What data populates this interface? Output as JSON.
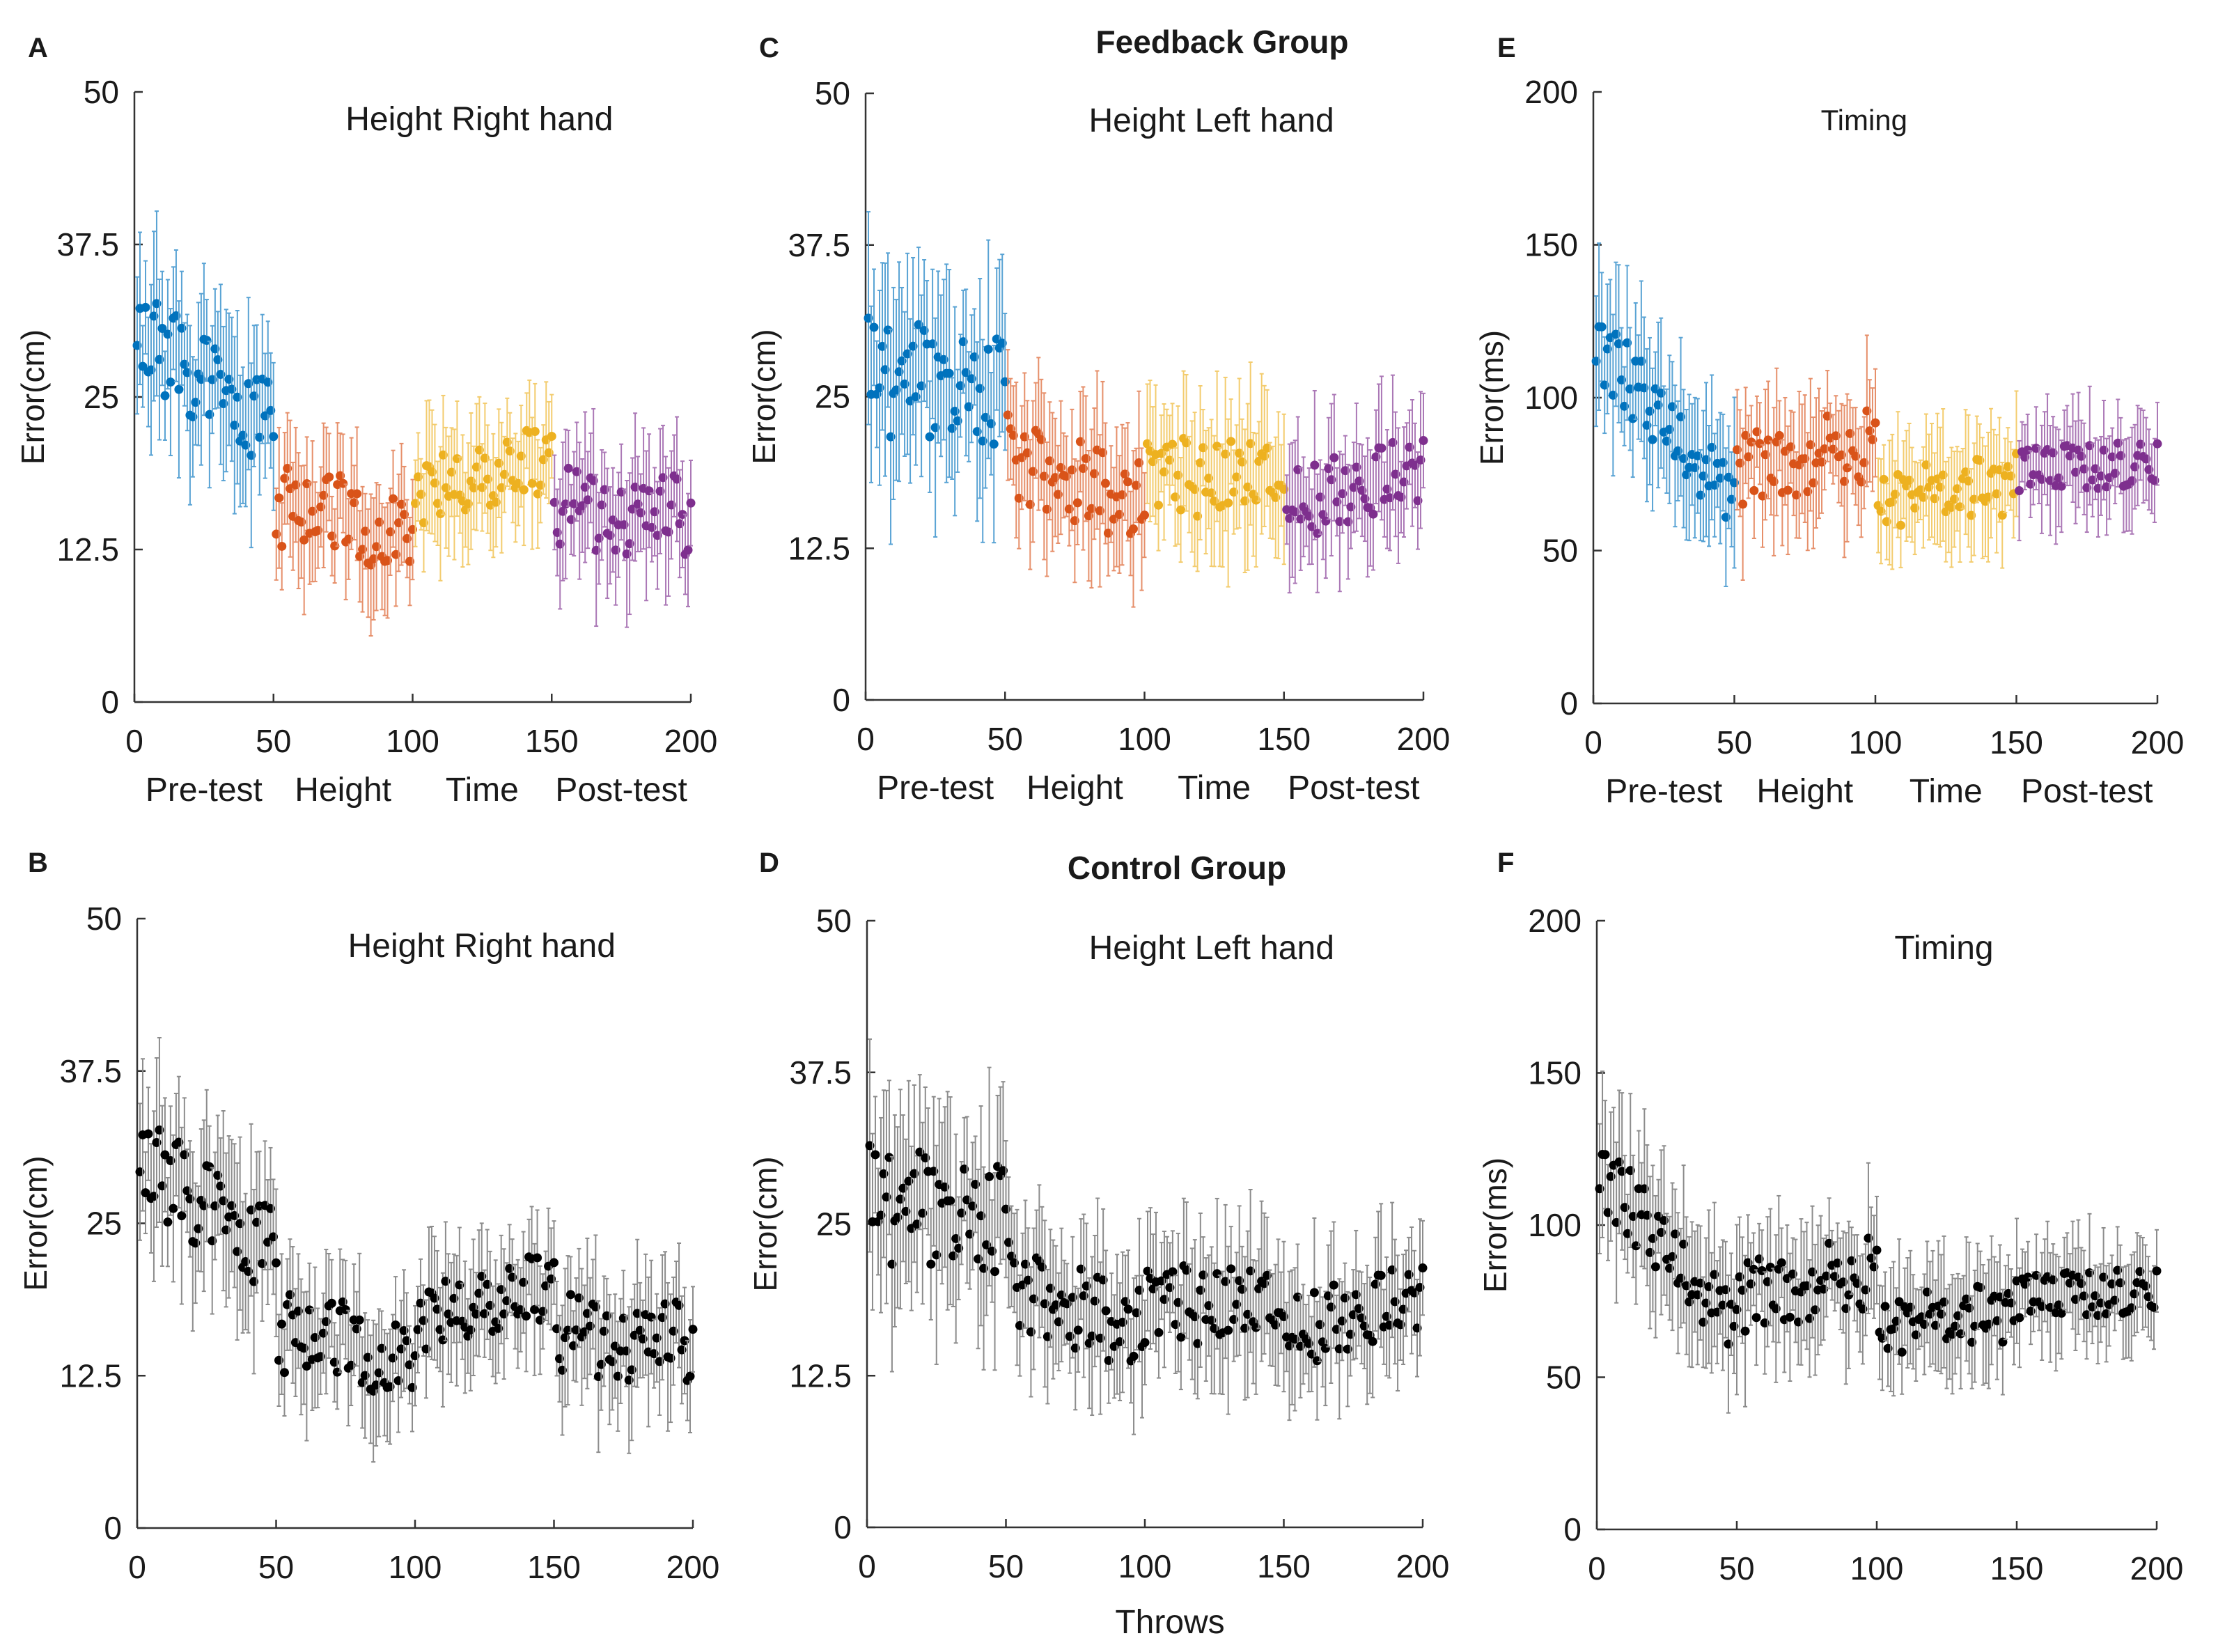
{
  "figure": {
    "group_titles": [
      "Feedback Group",
      "Control Group"
    ],
    "x_axis_label": "Throws",
    "phase_labels": [
      "Pre-test",
      "Height",
      "Time",
      "Post-test"
    ],
    "phase_colors": [
      "#0072BD",
      "#D95319",
      "#EDB120",
      "#7E2F8E"
    ],
    "control_color": "#000000"
  },
  "chart_data": [
    {
      "panel": "A",
      "type": "scatter",
      "title": "Height Right hand",
      "ylabel": "Error(cm)",
      "xlim": [
        0,
        200
      ],
      "ylim": [
        0,
        50
      ],
      "xticks": [
        0,
        50,
        100,
        150,
        200
      ],
      "yticks": [
        0,
        12.5,
        25,
        37.5,
        50
      ],
      "ytick_labels": [
        "0",
        "12.5",
        "25",
        "37.5",
        "50"
      ],
      "colored": true,
      "show_phase_labels": true,
      "show_xlabel": false,
      "series": [
        {
          "name": "Pre-test",
          "x_range": [
            1,
            50
          ],
          "mean_start": 30,
          "mean_end": 22,
          "noise": 4.0,
          "err": 5.5
        },
        {
          "name": "Height",
          "x_range": [
            51,
            100
          ],
          "mean_start": 16,
          "mean_end": 14,
          "noise": 3.5,
          "err": 4.5
        },
        {
          "name": "Time",
          "x_range": [
            101,
            150
          ],
          "mean_start": 17,
          "mean_end": 20,
          "noise": 3.0,
          "err": 4.0
        },
        {
          "name": "Post-test",
          "x_range": [
            151,
            200
          ],
          "mean_start": 16,
          "mean_end": 15,
          "noise": 3.5,
          "err": 4.5
        }
      ]
    },
    {
      "panel": "B",
      "type": "scatter",
      "title": "Height Right hand",
      "ylabel": "Error(cm)",
      "xlim": [
        0,
        200
      ],
      "ylim": [
        0,
        50
      ],
      "xticks": [
        0,
        50,
        100,
        150,
        200
      ],
      "yticks": [
        0,
        12.5,
        25,
        37.5,
        50
      ],
      "ytick_labels": [
        "0",
        "12.5",
        "25",
        "37.5",
        "50"
      ],
      "colored": false,
      "show_phase_labels": false,
      "show_xlabel": false,
      "series": [
        {
          "name": "Pre-test",
          "x_range": [
            1,
            50
          ],
          "mean_start": 30,
          "mean_end": 22,
          "noise": 4.0,
          "err": 5.5
        },
        {
          "name": "Height",
          "x_range": [
            51,
            100
          ],
          "mean_start": 16,
          "mean_end": 14,
          "noise": 3.5,
          "err": 4.5
        },
        {
          "name": "Time",
          "x_range": [
            101,
            150
          ],
          "mean_start": 17,
          "mean_end": 20,
          "noise": 3.0,
          "err": 4.0
        },
        {
          "name": "Post-test",
          "x_range": [
            151,
            200
          ],
          "mean_start": 16,
          "mean_end": 15,
          "noise": 3.5,
          "err": 4.5
        }
      ]
    },
    {
      "panel": "C",
      "type": "scatter",
      "title": "Height Left hand",
      "ylabel": "Error(cm)",
      "xlim": [
        0,
        200
      ],
      "ylim": [
        0,
        50
      ],
      "xticks": [
        0,
        50,
        100,
        150,
        200
      ],
      "yticks": [
        0,
        12.5,
        25,
        37.5,
        50
      ],
      "ytick_labels": [
        "0",
        "12.5",
        "25",
        "37.5",
        "50"
      ],
      "colored": true,
      "show_phase_labels": true,
      "show_xlabel": false,
      "series": [
        {
          "name": "Pre-test",
          "x_range": [
            1,
            50
          ],
          "mean_start": 27,
          "mean_end": 25,
          "noise": 5.0,
          "err": 6.5
        },
        {
          "name": "Height",
          "x_range": [
            51,
            100
          ],
          "mean_start": 20,
          "mean_end": 16,
          "noise": 3.5,
          "err": 5.0
        },
        {
          "name": "Time",
          "x_range": [
            101,
            150
          ],
          "mean_start": 18,
          "mean_end": 19,
          "noise": 3.5,
          "err": 5.0
        },
        {
          "name": "Post-test",
          "x_range": [
            151,
            200
          ],
          "mean_start": 16,
          "mean_end": 19,
          "noise": 3.0,
          "err": 4.5
        }
      ]
    },
    {
      "panel": "D",
      "type": "scatter",
      "title": "Height Left hand",
      "ylabel": "Error(cm)",
      "xlim": [
        0,
        200
      ],
      "ylim": [
        0,
        50
      ],
      "xticks": [
        0,
        50,
        100,
        150,
        200
      ],
      "yticks": [
        0,
        12.5,
        25,
        37.5,
        50
      ],
      "ytick_labels": [
        "0",
        "12.5",
        "25",
        "37.5",
        "50"
      ],
      "colored": false,
      "show_phase_labels": false,
      "show_xlabel": true,
      "series": [
        {
          "name": "Pre-test",
          "x_range": [
            1,
            50
          ],
          "mean_start": 27,
          "mean_end": 25,
          "noise": 5.0,
          "err": 6.5
        },
        {
          "name": "Height",
          "x_range": [
            51,
            100
          ],
          "mean_start": 20,
          "mean_end": 16,
          "noise": 3.5,
          "err": 5.0
        },
        {
          "name": "Time",
          "x_range": [
            101,
            150
          ],
          "mean_start": 18,
          "mean_end": 19,
          "noise": 3.5,
          "err": 5.0
        },
        {
          "name": "Post-test",
          "x_range": [
            151,
            200
          ],
          "mean_start": 16,
          "mean_end": 19,
          "noise": 3.0,
          "err": 4.5
        }
      ]
    },
    {
      "panel": "E",
      "type": "scatter",
      "title": "Timing",
      "ylabel": "Error(ms)",
      "xlim": [
        0,
        200
      ],
      "ylim": [
        0,
        200
      ],
      "xticks": [
        0,
        50,
        100,
        150,
        200
      ],
      "yticks": [
        0,
        50,
        100,
        150,
        200
      ],
      "ytick_labels": [
        "0",
        "50",
        "100",
        "150",
        "200"
      ],
      "colored": true,
      "show_phase_labels": true,
      "show_xlabel": false,
      "series": [
        {
          "name": "Pre-test",
          "x_range": [
            1,
            50
          ],
          "mean_start": 118,
          "mean_end": 65,
          "noise": 12,
          "err": 20
        },
        {
          "name": "Height",
          "x_range": [
            51,
            100
          ],
          "mean_start": 75,
          "mean_end": 85,
          "noise": 14,
          "err": 18
        },
        {
          "name": "Time",
          "x_range": [
            101,
            150
          ],
          "mean_start": 66,
          "mean_end": 72,
          "noise": 10,
          "err": 16
        },
        {
          "name": "Post-test",
          "x_range": [
            151,
            200
          ],
          "mean_start": 75,
          "mean_end": 80,
          "noise": 8,
          "err": 14
        }
      ]
    },
    {
      "panel": "F",
      "type": "scatter",
      "title": "Timing",
      "ylabel": "Error(ms)",
      "xlim": [
        0,
        200
      ],
      "ylim": [
        0,
        200
      ],
      "xticks": [
        0,
        50,
        100,
        150,
        200
      ],
      "yticks": [
        0,
        50,
        100,
        150,
        200
      ],
      "ytick_labels": [
        "0",
        "50",
        "100",
        "150",
        "200"
      ],
      "colored": false,
      "show_phase_labels": false,
      "show_xlabel": false,
      "series": [
        {
          "name": "Pre-test",
          "x_range": [
            1,
            50
          ],
          "mean_start": 118,
          "mean_end": 65,
          "noise": 12,
          "err": 20
        },
        {
          "name": "Height",
          "x_range": [
            51,
            100
          ],
          "mean_start": 75,
          "mean_end": 85,
          "noise": 14,
          "err": 18
        },
        {
          "name": "Time",
          "x_range": [
            101,
            150
          ],
          "mean_start": 66,
          "mean_end": 72,
          "noise": 10,
          "err": 16
        },
        {
          "name": "Post-test",
          "x_range": [
            151,
            200
          ],
          "mean_start": 75,
          "mean_end": 80,
          "noise": 8,
          "err": 14
        }
      ]
    }
  ]
}
